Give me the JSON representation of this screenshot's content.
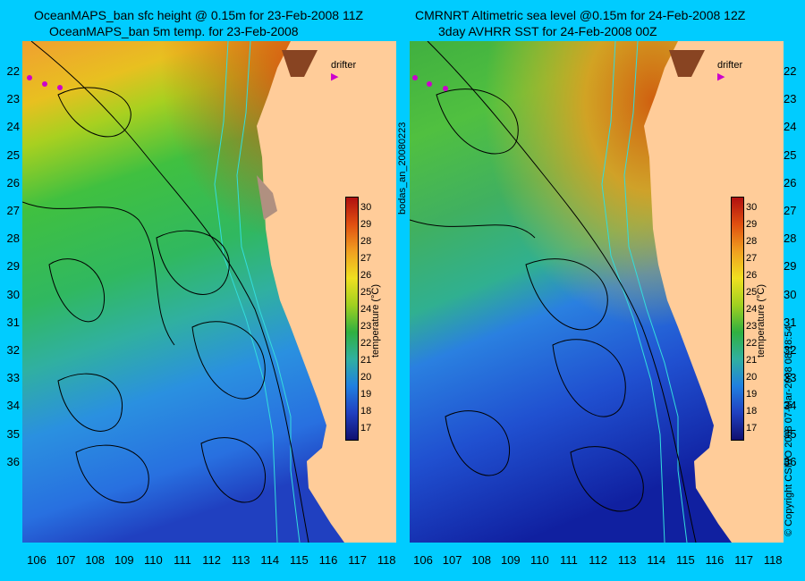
{
  "titles": {
    "left_line1": "OceanMAPS_ban sfc height @ 0.15m for 23-Feb-2008 11Z",
    "left_line2": "OceanMAPS_ban 5m temp. for 23-Feb-2008",
    "right_line1": "CMRNRT Altimetric sea level  @0.15m  for 24-Feb-2008 12Z",
    "right_line2": "3day AVHRR SST for 24-Feb-2008 00Z"
  },
  "lat_ticks": [
    "22",
    "23",
    "24",
    "25",
    "26",
    "27",
    "28",
    "29",
    "30",
    "31",
    "32",
    "33",
    "34",
    "35",
    "36"
  ],
  "lon_ticks": [
    "106",
    "107",
    "108",
    "109",
    "110",
    "111",
    "112",
    "113",
    "114",
    "115",
    "116",
    "117",
    "118"
  ],
  "colorbar": {
    "ticks": [
      "30",
      "29",
      "28",
      "27",
      "26",
      "25",
      "24",
      "23",
      "22",
      "21",
      "20",
      "19",
      "18",
      "17"
    ],
    "label": "temperature (°C)"
  },
  "legend": {
    "drifter": "drifter"
  },
  "side_labels": {
    "left": "bodas_an_20080223",
    "right": "© Copyright CSIRO 2008   07-Mar-2008 08:18:54"
  },
  "colors": {
    "background": "#00ccff",
    "land": "#ffcc99",
    "contour": "#000000",
    "isobath": "#33dddd",
    "drifter": "#cc00cc"
  }
}
